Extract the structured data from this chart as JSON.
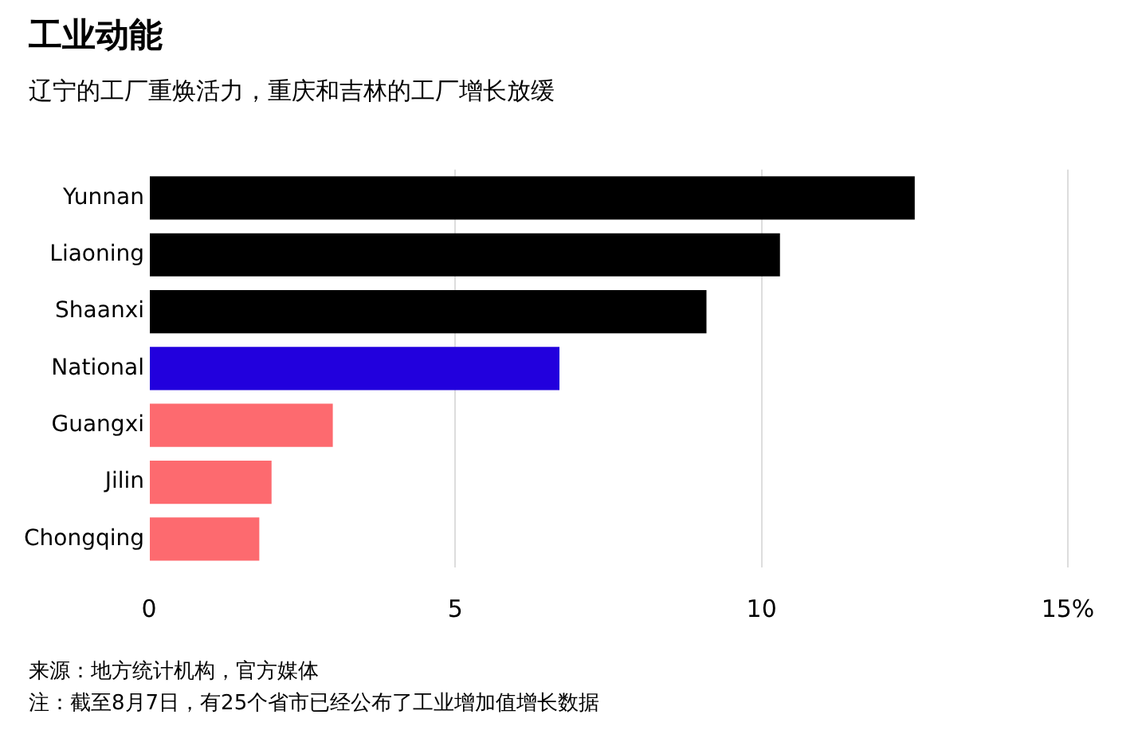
{
  "chart_data": {
    "type": "bar",
    "orientation": "horizontal",
    "title": "工业动能",
    "subtitle": "辽宁的工厂重焕活力，重庆和吉林的工厂增长放缓",
    "categories": [
      "Yunnan",
      "Liaoning",
      "Shaanxi",
      "National",
      "Guangxi",
      "Jilin",
      "Chongqing"
    ],
    "values": [
      12.5,
      10.3,
      9.1,
      6.7,
      3.0,
      2.0,
      1.8
    ],
    "colors": [
      "#000000",
      "#000000",
      "#000000",
      "#2200dd",
      "#fd6a6f",
      "#fd6a6f",
      "#fd6a6f"
    ],
    "xlim": [
      0,
      15
    ],
    "xticks": [
      0,
      5,
      10,
      {
        "value": 15,
        "label": "15%"
      }
    ],
    "grid": "x",
    "annotations": [
      "来源：地方统计机构，官方媒体",
      "注：截至8月7日，有25个省市已经公布了工业增加值增长数据"
    ]
  }
}
